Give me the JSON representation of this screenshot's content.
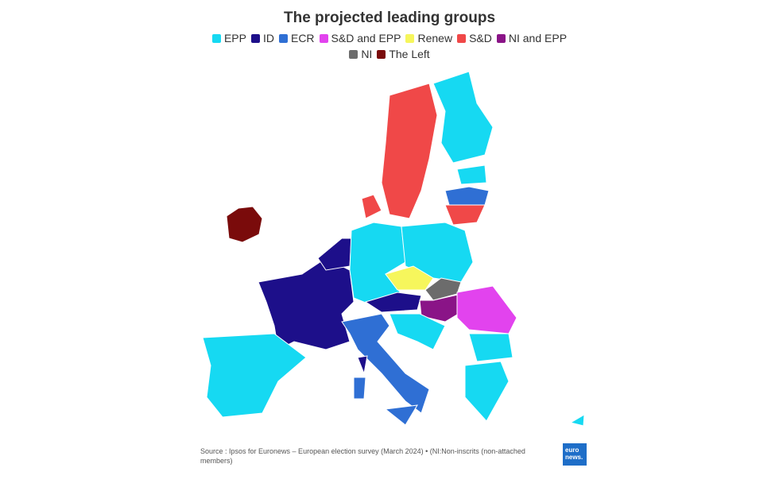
{
  "title": "The projected leading groups",
  "legend": [
    {
      "name": "EPP",
      "color": "#16d9f2"
    },
    {
      "name": "ID",
      "color": "#1d0f8a"
    },
    {
      "name": "ECR",
      "color": "#2f6fd4"
    },
    {
      "name": "S&D and EPP",
      "color": "#e243ee"
    },
    {
      "name": "Renew",
      "color": "#f6f65c"
    },
    {
      "name": "S&D",
      "color": "#f04848"
    },
    {
      "name": "NI and EPP",
      "color": "#8a1487"
    },
    {
      "name": "NI",
      "color": "#6c6c6c"
    },
    {
      "name": "The Left",
      "color": "#7a0b0b"
    }
  ],
  "source": "Source : Ipsos for Euronews – European election survey (March 2024) • (NI:Non-inscrits (non-attached members)",
  "logo": {
    "line1": "euro",
    "line2": "news."
  }
}
